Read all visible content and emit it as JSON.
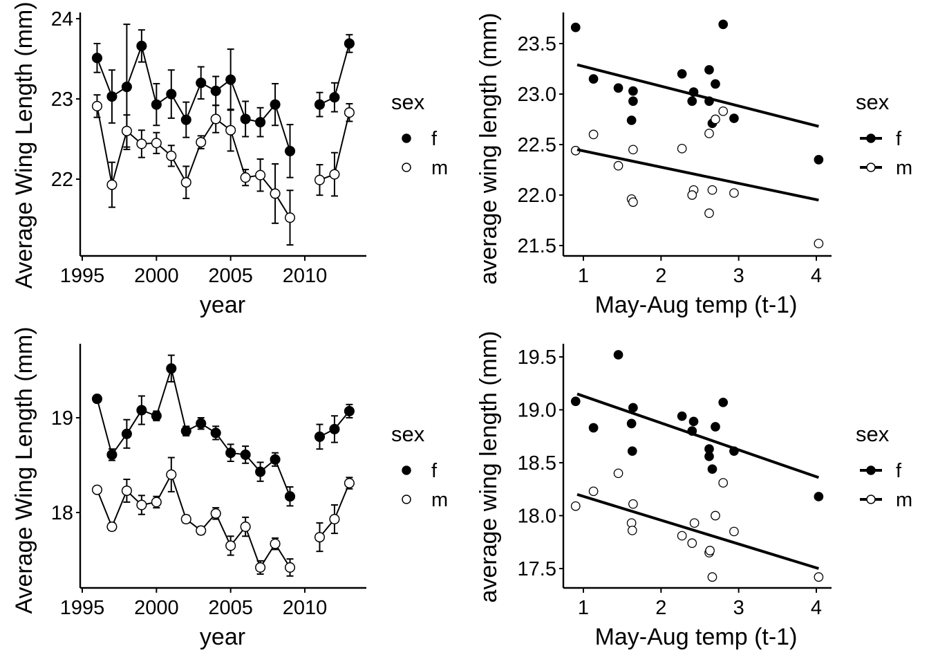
{
  "chart_data": [
    {
      "id": "top-left",
      "type": "line",
      "xlabel": "year",
      "ylabel": "Average Wing Length (mm)",
      "xlim": [
        1995,
        2014
      ],
      "ylim": [
        21.1,
        24.1
      ],
      "xticks": [
        1995,
        2000,
        2005,
        2010
      ],
      "xtick_labels": [
        "1995",
        "2000",
        "2005",
        "2010"
      ],
      "yticks": [
        22,
        23,
        24
      ],
      "ytick_labels": [
        "22",
        "23",
        "24"
      ],
      "grid": false,
      "legend": {
        "title": "sex",
        "position": "right",
        "entries": [
          "f",
          "m"
        ]
      },
      "x": [
        1996,
        1997,
        1998,
        1999,
        2000,
        2001,
        2002,
        2003,
        2004,
        2005,
        2006,
        2007,
        2008,
        2009,
        2011,
        2012,
        2013
      ],
      "series": [
        {
          "name": "f",
          "marker": "filled-circle",
          "values": [
            23.51,
            23.03,
            23.15,
            23.66,
            22.93,
            23.06,
            22.74,
            23.2,
            23.1,
            23.24,
            22.75,
            22.71,
            22.93,
            22.35,
            22.93,
            23.02,
            23.69
          ],
          "err": [
            0.18,
            0.33,
            0.78,
            0.2,
            0.26,
            0.3,
            0.22,
            0.2,
            0.18,
            0.38,
            0.22,
            0.18,
            0.26,
            0.33,
            0.15,
            0.18,
            0.11
          ]
        },
        {
          "name": "m",
          "marker": "open-circle",
          "values": [
            22.91,
            21.93,
            22.6,
            22.44,
            22.45,
            22.29,
            21.96,
            22.46,
            22.75,
            22.61,
            22.02,
            22.05,
            21.82,
            21.52,
            21.99,
            22.06,
            22.83
          ],
          "err": [
            0.14,
            0.28,
            0.2,
            0.17,
            0.13,
            0.13,
            0.2,
            0.08,
            0.17,
            0.26,
            0.1,
            0.2,
            0.37,
            0.34,
            0.19,
            0.27,
            0.11
          ]
        }
      ]
    },
    {
      "id": "top-right",
      "type": "scatter",
      "xlabel": "May-Aug temp (t-1)",
      "ylabel": "average wing length (mm)",
      "xlim": [
        0.75,
        4.2
      ],
      "ylim": [
        21.4,
        23.82
      ],
      "xticks": [
        1,
        2,
        3,
        4
      ],
      "xtick_labels": [
        "1",
        "2",
        "3",
        "4"
      ],
      "yticks": [
        21.5,
        22.0,
        22.5,
        23.0,
        23.5
      ],
      "ytick_labels": [
        "21.5",
        "22.0",
        "22.5",
        "23.0",
        "23.5"
      ],
      "grid": false,
      "legend": {
        "title": "sex",
        "position": "right",
        "entries": [
          "f",
          "m"
        ]
      },
      "series": [
        {
          "name": "f",
          "marker": "filled-circle",
          "x": [
            0.9,
            1.13,
            1.45,
            1.64,
            1.64,
            1.62,
            2.27,
            2.42,
            2.4,
            2.62,
            2.62,
            2.7,
            2.66,
            2.8,
            2.94,
            4.03
          ],
          "y": [
            23.66,
            23.15,
            23.06,
            23.03,
            22.93,
            22.74,
            23.2,
            23.02,
            22.93,
            23.24,
            22.93,
            23.1,
            22.71,
            23.69,
            22.76,
            22.35
          ],
          "fit": {
            "x": [
              0.92,
              4.03
            ],
            "y": [
              23.29,
              22.68
            ]
          }
        },
        {
          "name": "m",
          "marker": "open-circle",
          "x": [
            0.9,
            1.13,
            1.45,
            1.64,
            1.62,
            1.64,
            2.27,
            2.42,
            2.4,
            2.62,
            2.62,
            2.66,
            2.7,
            2.8,
            2.94,
            4.03
          ],
          "y": [
            22.44,
            22.6,
            22.29,
            22.45,
            21.96,
            21.93,
            22.46,
            22.05,
            22.0,
            22.61,
            21.82,
            22.05,
            22.75,
            22.83,
            22.02,
            21.52
          ],
          "fit": {
            "x": [
              0.92,
              4.03
            ],
            "y": [
              22.45,
              21.95
            ]
          }
        }
      ]
    },
    {
      "id": "bottom-left",
      "type": "line",
      "xlabel": "year",
      "ylabel": "Average Wing Length (mm)",
      "xlim": [
        1995,
        2014
      ],
      "ylim": [
        17.2,
        19.77
      ],
      "xticks": [
        1995,
        2000,
        2005,
        2010
      ],
      "xtick_labels": [
        "1995",
        "2000",
        "2005",
        "2010"
      ],
      "yticks": [
        18,
        19
      ],
      "ytick_labels": [
        "18",
        "19"
      ],
      "grid": false,
      "legend": {
        "title": "sex",
        "position": "right",
        "entries": [
          "f",
          "m"
        ]
      },
      "x": [
        1996,
        1997,
        1998,
        1999,
        2000,
        2001,
        2002,
        2003,
        2004,
        2005,
        2006,
        2007,
        2008,
        2009,
        2011,
        2012,
        2013
      ],
      "series": [
        {
          "name": "f",
          "marker": "filled-circle",
          "values": [
            19.2,
            18.61,
            18.83,
            19.08,
            19.02,
            19.52,
            18.86,
            18.94,
            18.84,
            18.63,
            18.61,
            18.43,
            18.56,
            18.17,
            18.8,
            18.88,
            19.07
          ],
          "err": [
            0.03,
            0.06,
            0.15,
            0.15,
            0.05,
            0.14,
            0.05,
            0.06,
            0.07,
            0.09,
            0.09,
            0.1,
            0.07,
            0.1,
            0.13,
            0.14,
            0.07
          ]
        },
        {
          "name": "m",
          "marker": "open-circle",
          "values": [
            18.24,
            17.85,
            18.23,
            18.08,
            18.11,
            18.4,
            17.93,
            17.81,
            17.99,
            17.65,
            17.85,
            17.42,
            17.67,
            17.42,
            17.74,
            17.93,
            18.31
          ],
          "err": [
            0.02,
            0.04,
            0.12,
            0.1,
            0.06,
            0.18,
            0.04,
            0.04,
            0.06,
            0.1,
            0.1,
            0.07,
            0.06,
            0.09,
            0.15,
            0.15,
            0.06
          ]
        }
      ]
    },
    {
      "id": "bottom-right",
      "type": "scatter",
      "xlabel": "May-Aug temp (t-1)",
      "ylabel": "average wing length (mm)",
      "xlim": [
        0.75,
        4.2
      ],
      "ylim": [
        17.32,
        19.63
      ],
      "xticks": [
        1,
        2,
        3,
        4
      ],
      "xtick_labels": [
        "1",
        "2",
        "3",
        "4"
      ],
      "yticks": [
        17.5,
        18.0,
        18.5,
        19.0,
        19.5
      ],
      "ytick_labels": [
        "17.5",
        "18.0",
        "18.5",
        "19.0",
        "19.5"
      ],
      "grid": false,
      "legend": {
        "title": "sex",
        "position": "right",
        "entries": [
          "f",
          "m"
        ]
      },
      "series": [
        {
          "name": "f",
          "marker": "filled-circle",
          "x": [
            0.9,
            1.13,
            1.45,
            1.64,
            1.62,
            1.63,
            2.27,
            2.42,
            2.4,
            2.62,
            2.62,
            2.66,
            2.7,
            2.8,
            2.94,
            4.03
          ],
          "y": [
            19.08,
            18.83,
            19.52,
            19.02,
            18.87,
            18.61,
            18.94,
            18.89,
            18.8,
            18.63,
            18.56,
            18.44,
            18.84,
            19.07,
            18.61,
            18.18
          ],
          "fit": {
            "x": [
              0.92,
              4.03
            ],
            "y": [
              19.15,
              18.36
            ]
          }
        },
        {
          "name": "m",
          "marker": "open-circle",
          "x": [
            0.9,
            1.13,
            1.45,
            1.64,
            1.62,
            1.63,
            2.27,
            2.43,
            2.4,
            2.62,
            2.63,
            2.66,
            2.7,
            2.8,
            2.94,
            4.03
          ],
          "y": [
            18.09,
            18.23,
            18.4,
            18.11,
            17.93,
            17.86,
            17.81,
            17.93,
            17.74,
            17.65,
            17.67,
            17.42,
            18.0,
            18.31,
            17.85,
            17.42
          ],
          "fit": {
            "x": [
              0.92,
              4.03
            ],
            "y": [
              18.2,
              17.5
            ]
          }
        }
      ]
    }
  ]
}
